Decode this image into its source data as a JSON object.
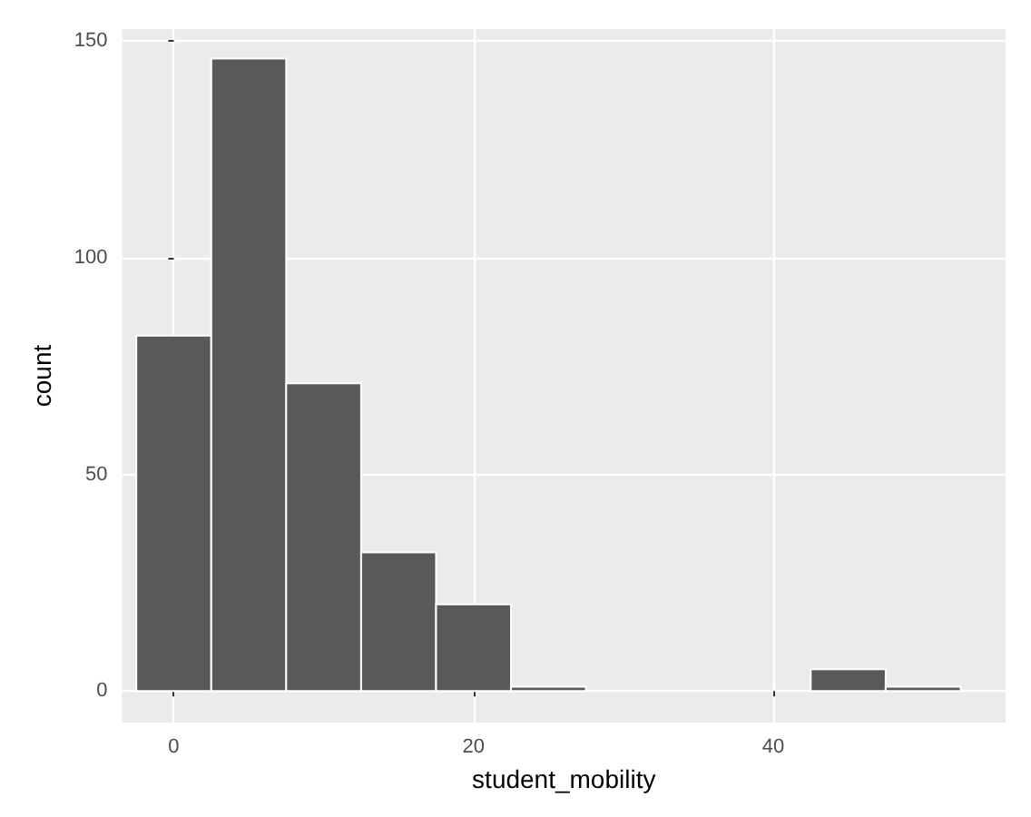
{
  "chart_data": {
    "type": "histogram",
    "xlabel": "student_mobility",
    "ylabel": "count",
    "bins": [
      -2.5,
      2.5,
      7.5,
      12.5,
      17.5,
      22.5,
      27.5,
      32.5,
      37.5,
      42.5,
      47.5,
      52.5
    ],
    "values": [
      82,
      146,
      71,
      32,
      20,
      1,
      0,
      0,
      0,
      5,
      1
    ],
    "color": "#595959",
    "xlim": [
      -3.45,
      55.5
    ],
    "xticks": [
      0,
      20,
      40
    ],
    "ylim": [
      -7.3,
      152.8
    ],
    "yticks": [
      0,
      50,
      100,
      150
    ],
    "grid": true
  }
}
